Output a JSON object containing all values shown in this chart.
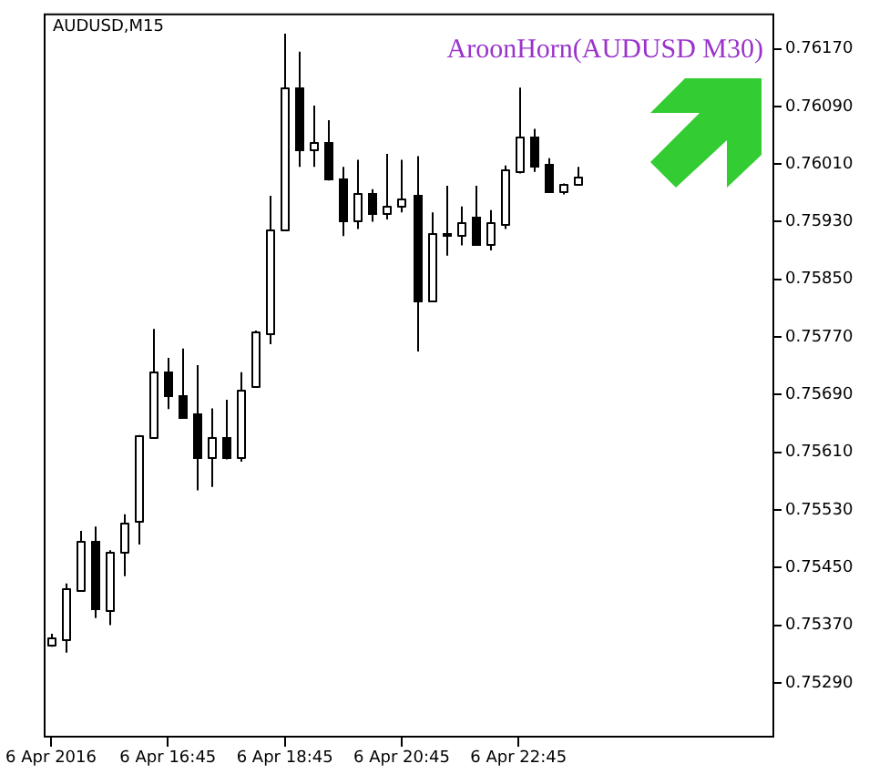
{
  "chart_data": {
    "type": "candlestick",
    "title": "AUDUSD,M15",
    "annotations": [
      "AroonHorn(AUDUSD M30)"
    ],
    "categories": [
      "6 Apr 2016",
      null,
      null,
      null,
      null,
      null,
      null,
      null,
      "6 Apr 16:45",
      null,
      null,
      null,
      null,
      null,
      null,
      null,
      "6 Apr 18:45",
      null,
      null,
      null,
      null,
      null,
      null,
      null,
      "6 Apr 20:45",
      null,
      null,
      null,
      null,
      null,
      null,
      null,
      "6 Apr 22:45",
      null,
      null,
      null,
      null,
      null,
      null,
      null,
      null,
      null,
      null,
      null,
      null,
      null,
      null,
      null,
      null,
      null
    ],
    "ohlc": [
      [
        0.75343,
        0.75358,
        0.7534,
        0.75353
      ],
      [
        0.7535,
        0.75428,
        0.75332,
        0.75422
      ],
      [
        0.7542,
        0.75501,
        0.75418,
        0.75488
      ],
      [
        0.75488,
        0.75507,
        0.7538,
        0.75393
      ],
      [
        0.75391,
        0.75474,
        0.7537,
        0.75473
      ],
      [
        0.75472,
        0.75524,
        0.75438,
        0.75513
      ],
      [
        0.75514,
        0.75634,
        0.75482,
        0.75633
      ],
      [
        0.75631,
        0.75781,
        0.75629,
        0.75721
      ],
      [
        0.75721,
        0.75741,
        0.7567,
        0.7569
      ],
      [
        0.7569,
        0.75754,
        0.75658,
        0.7566
      ],
      [
        0.75663,
        0.75731,
        0.75557,
        0.75603
      ],
      [
        0.75603,
        0.75671,
        0.75562,
        0.7563
      ],
      [
        0.7563,
        0.75683,
        0.756,
        0.75603
      ],
      [
        0.75603,
        0.75721,
        0.75597,
        0.75698
      ],
      [
        0.75701,
        0.75779,
        0.757,
        0.75778
      ],
      [
        0.75776,
        0.75966,
        0.7576,
        0.75918
      ],
      [
        0.75918,
        0.76191,
        0.75917,
        0.76116
      ],
      [
        0.76116,
        0.76166,
        0.76006,
        0.7603
      ],
      [
        0.7603,
        0.76091,
        0.76006,
        0.76041
      ],
      [
        0.76041,
        0.76071,
        0.75987,
        0.75989
      ],
      [
        0.75991,
        0.76006,
        0.7591,
        0.75933
      ],
      [
        0.75933,
        0.76016,
        0.7592,
        0.75971
      ],
      [
        0.75971,
        0.75975,
        0.7593,
        0.75943
      ],
      [
        0.75943,
        0.76024,
        0.75933,
        0.75953
      ],
      [
        0.75953,
        0.76016,
        0.75943,
        0.75963
      ],
      [
        0.75968,
        0.76021,
        0.7575,
        0.7582
      ],
      [
        0.7582,
        0.75943,
        0.75819,
        0.75913
      ],
      [
        0.75914,
        0.7598,
        0.75883,
        0.75911
      ],
      [
        0.75911,
        0.75951,
        0.75897,
        0.7593
      ],
      [
        0.75938,
        0.7598,
        0.75898,
        0.75899
      ],
      [
        0.75899,
        0.75946,
        0.7589,
        0.7593
      ],
      [
        0.75928,
        0.76008,
        0.7592,
        0.76003
      ],
      [
        0.76001,
        0.76116,
        0.75997,
        0.76048
      ],
      [
        0.76049,
        0.76059,
        0.75999,
        0.76008
      ],
      [
        0.76011,
        0.76018,
        0.7597,
        0.75972
      ],
      [
        0.75973,
        0.75983,
        0.75968,
        0.75983
      ],
      [
        0.75982,
        0.76006,
        0.75982,
        0.75992
      ],
      null,
      null,
      null,
      null,
      null,
      null,
      null,
      null,
      null,
      null,
      null,
      null,
      null
    ],
    "ylim": [
      0.75214,
      0.76219
    ],
    "yticks": [
      {
        "value": 0.7529,
        "label": "0.75290"
      },
      {
        "value": 0.7537,
        "label": "0.75370"
      },
      {
        "value": 0.7545,
        "label": "0.75450"
      },
      {
        "value": 0.7553,
        "label": "0.75530"
      },
      {
        "value": 0.7561,
        "label": "0.75610"
      },
      {
        "value": 0.7569,
        "label": "0.75690"
      },
      {
        "value": 0.7577,
        "label": "0.75770"
      },
      {
        "value": 0.7585,
        "label": "0.75850"
      },
      {
        "value": 0.7593,
        "label": "0.75930"
      },
      {
        "value": 0.7601,
        "label": "0.76010"
      },
      {
        "value": 0.7609,
        "label": "0.76090"
      },
      {
        "value": 0.7617,
        "label": "0.76170"
      }
    ]
  }
}
